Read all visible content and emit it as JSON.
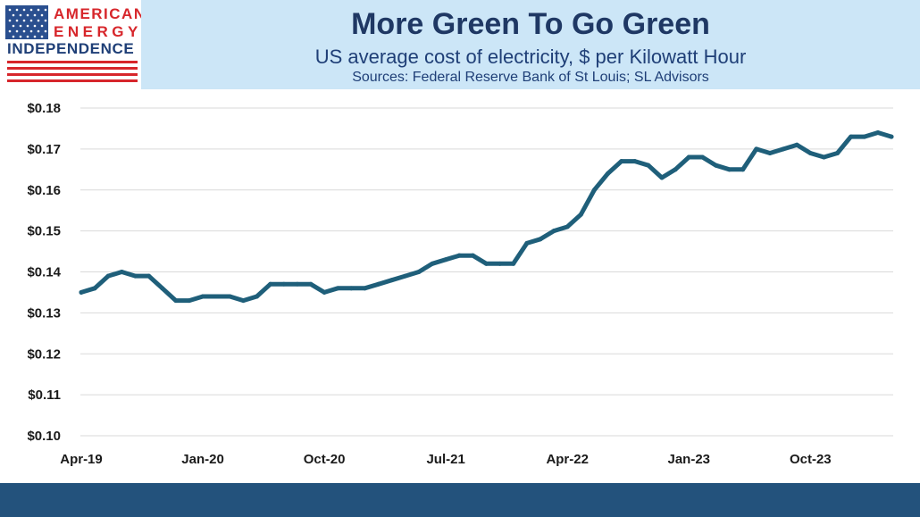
{
  "logo": {
    "line1": "AMERICAN",
    "line2": "ENERGY",
    "line3": "INDEPENDENCE"
  },
  "header": {
    "title": "More Green To Go Green",
    "subtitle": "US average cost of electricity, $ per Kilowatt Hour",
    "sources": "Sources: Federal Reserve Bank of St Louis; SL Advisors"
  },
  "colors": {
    "line": "#1f5f7a",
    "header_bg": "#cce6f7",
    "title": "#1f3864",
    "footer": "#23527c"
  },
  "chart_data": {
    "type": "line",
    "title": "More Green To Go Green",
    "ylim": [
      0.1,
      0.18
    ],
    "yticks": [
      0.1,
      0.11,
      0.12,
      0.13,
      0.14,
      0.15,
      0.16,
      0.17,
      0.18
    ],
    "ytick_labels": [
      "$0.10",
      "$0.11",
      "$0.12",
      "$0.13",
      "$0.14",
      "$0.15",
      "$0.16",
      "$0.17",
      "$0.18"
    ],
    "xtick_labels": [
      "Apr-19",
      "Jan-20",
      "Oct-20",
      "Jul-21",
      "Apr-22",
      "Jan-23",
      "Oct-23"
    ],
    "xtick_months": [
      "2019-04",
      "2020-01",
      "2020-10",
      "2021-07",
      "2022-04",
      "2023-01",
      "2023-10"
    ],
    "grid": true,
    "x": [
      "2019-04",
      "2019-05",
      "2019-06",
      "2019-07",
      "2019-08",
      "2019-09",
      "2019-10",
      "2019-11",
      "2019-12",
      "2020-01",
      "2020-02",
      "2020-03",
      "2020-04",
      "2020-05",
      "2020-06",
      "2020-07",
      "2020-08",
      "2020-09",
      "2020-10",
      "2020-11",
      "2020-12",
      "2021-01",
      "2021-02",
      "2021-03",
      "2021-04",
      "2021-05",
      "2021-06",
      "2021-07",
      "2021-08",
      "2021-09",
      "2021-10",
      "2021-11",
      "2021-12",
      "2022-01",
      "2022-02",
      "2022-03",
      "2022-04",
      "2022-05",
      "2022-06",
      "2022-07",
      "2022-08",
      "2022-09",
      "2022-10",
      "2022-11",
      "2022-12",
      "2023-01",
      "2023-02",
      "2023-03",
      "2023-04",
      "2023-05",
      "2023-06",
      "2023-07",
      "2023-08",
      "2023-09",
      "2023-10",
      "2023-11",
      "2023-12",
      "2024-01",
      "2024-02",
      "2024-03",
      "2024-04"
    ],
    "series": [
      {
        "values": [
          0.135,
          0.136,
          0.139,
          0.14,
          0.139,
          0.139,
          0.136,
          0.133,
          0.133,
          0.134,
          0.134,
          0.134,
          0.133,
          0.134,
          0.137,
          0.137,
          0.137,
          0.137,
          0.135,
          0.136,
          0.136,
          0.136,
          0.137,
          0.138,
          0.139,
          0.14,
          0.142,
          0.143,
          0.144,
          0.144,
          0.142,
          0.142,
          0.142,
          0.147,
          0.148,
          0.15,
          0.151,
          0.154,
          0.16,
          0.164,
          0.167,
          0.167,
          0.166,
          0.163,
          0.165,
          0.168,
          0.168,
          0.166,
          0.165,
          0.165,
          0.17,
          0.169,
          0.17,
          0.171,
          0.169,
          0.168,
          0.169,
          0.173,
          0.173,
          0.174,
          0.173
        ]
      }
    ]
  }
}
